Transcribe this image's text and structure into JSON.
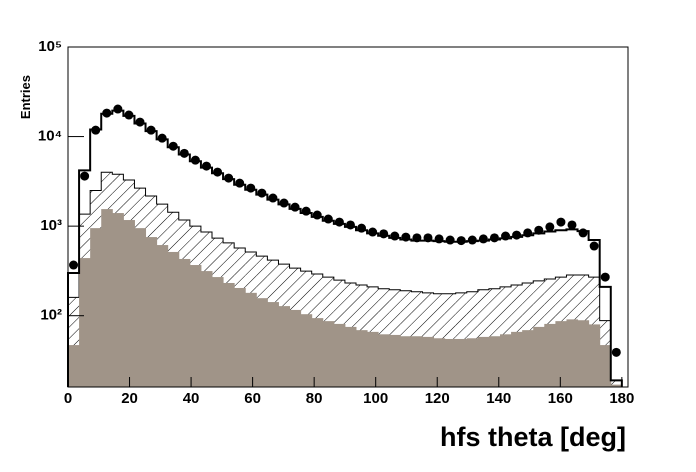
{
  "chart_data": {
    "type": "histogram",
    "xlabel": "hfs theta [deg]",
    "ylabel": "Entries",
    "log_y": true,
    "grid": false,
    "xlim": [
      0,
      182
    ],
    "ylim": [
      16,
      100000
    ],
    "xticks": [
      0,
      20,
      40,
      60,
      80,
      100,
      120,
      140,
      160,
      180
    ],
    "yticks": [
      {
        "value": 100,
        "label": "10²"
      },
      {
        "value": 1000,
        "label": "10³"
      },
      {
        "value": 10000,
        "label": "10⁴"
      },
      {
        "value": 100000,
        "label": "10⁵"
      }
    ],
    "bins": [
      0,
      3.6,
      7.2,
      10.8,
      14.4,
      18,
      21.6,
      25.2,
      28.8,
      32.4,
      36,
      39.6,
      43.2,
      46.8,
      50.4,
      54,
      57.6,
      61.2,
      64.8,
      68.4,
      72,
      75.6,
      79.2,
      82.8,
      86.4,
      90,
      93.6,
      97.2,
      100.8,
      104.4,
      108,
      111.6,
      115.2,
      118.8,
      122.4,
      126,
      129.6,
      133.2,
      136.8,
      140.4,
      144,
      147.6,
      151.2,
      154.8,
      158.4,
      162,
      165.6,
      169.2,
      172.8,
      176.4,
      180
    ],
    "series": [
      {
        "style": "hatch",
        "color": "#000000",
        "values": [
          160,
          1360,
          2500,
          4000,
          3800,
          3270,
          2660,
          2170,
          1760,
          1430,
          1170,
          1000,
          860,
          735,
          650,
          570,
          515,
          463,
          418,
          377,
          340,
          315,
          292,
          270,
          250,
          232,
          220,
          210,
          200,
          195,
          190,
          185,
          180,
          176,
          176,
          180,
          185,
          195,
          200,
          210,
          220,
          232,
          245,
          257,
          270,
          285,
          285,
          270,
          88,
          19
        ]
      },
      {
        "style": "fill",
        "color": "#a09488",
        "values": [
          47,
          440,
          950,
          1550,
          1400,
          1170,
          950,
          755,
          615,
          515,
          430,
          368,
          315,
          270,
          232,
          204,
          180,
          157,
          142,
          128,
          116,
          104,
          94,
          87,
          81,
          75,
          69,
          66,
          62,
          61,
          59,
          59,
          58,
          56,
          55,
          55,
          56,
          58,
          59,
          62,
          66,
          69,
          75,
          81,
          87,
          91,
          89,
          80,
          47,
          17
        ]
      },
      {
        "style": "step",
        "color": "#000000",
        "values": [
          300,
          4200,
          12000,
          18000,
          19500,
          17000,
          14000,
          11500,
          9300,
          7600,
          6300,
          5300,
          4500,
          3900,
          3350,
          2900,
          2550,
          2250,
          1980,
          1750,
          1560,
          1400,
          1270,
          1150,
          1060,
          980,
          900,
          830,
          780,
          740,
          710,
          690,
          690,
          680,
          670,
          670,
          680,
          690,
          710,
          730,
          760,
          790,
          830,
          870,
          900,
          920,
          880,
          700,
          210,
          19
        ]
      },
      {
        "style": "points",
        "color": "#000000",
        "values": [
          368,
          3620,
          11800,
          18300,
          20300,
          17400,
          14500,
          11800,
          9600,
          7800,
          6500,
          5450,
          4680,
          4010,
          3440,
          3020,
          2660,
          2340,
          2060,
          1810,
          1630,
          1470,
          1330,
          1200,
          1110,
          1030,
          950,
          860,
          820,
          775,
          755,
          740,
          740,
          720,
          700,
          690,
          700,
          720,
          740,
          775,
          795,
          840,
          900,
          980,
          1110,
          1030,
          840,
          600,
          270,
          39
        ]
      }
    ]
  }
}
